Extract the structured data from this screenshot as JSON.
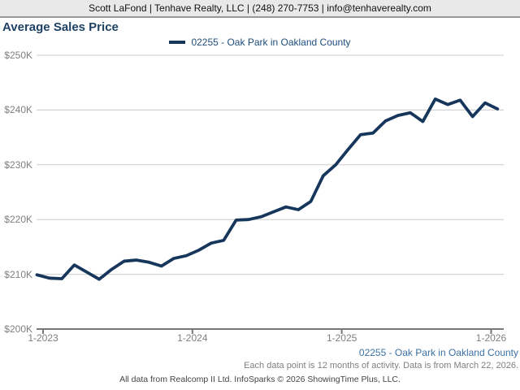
{
  "header": {
    "text": "Scott LaFond | Tenhave Realty, LLC | (248) 270-7753 | info@tenhaverealty.com"
  },
  "title": "Average Sales Price",
  "legend": {
    "label": "02255 - Oak Park in Oakland County"
  },
  "footer": {
    "series_label": "02255 - Oak Park in Oakland County",
    "note": "Each data point is 12 months of activity. Data is from March 22, 2026.",
    "attribution": "All data from Realcomp II Ltd. InfoSparks © 2026 ShowingTime Plus, LLC."
  },
  "colors": {
    "line": "#16365c",
    "title": "#1e4164",
    "legend_text": "#1d4d7c",
    "footer_link": "#3c72a4",
    "axis": "#777777",
    "grid": "#cccccc",
    "tick_text": "#7f7f7f",
    "header_bg": "#e9e9e9"
  },
  "chart_data": {
    "type": "line",
    "title": "Average Sales Price",
    "x": [
      "1-2023",
      "2-2023",
      "3-2023",
      "4-2023",
      "5-2023",
      "6-2023",
      "7-2023",
      "8-2023",
      "9-2023",
      "10-2023",
      "11-2023",
      "12-2023",
      "1-2024",
      "2-2024",
      "3-2024",
      "4-2024",
      "5-2024",
      "6-2024",
      "7-2024",
      "8-2024",
      "9-2024",
      "10-2024",
      "11-2024",
      "12-2024",
      "1-2025",
      "2-2025",
      "3-2025",
      "4-2025",
      "5-2025",
      "6-2025",
      "7-2025",
      "8-2025",
      "9-2025",
      "10-2025",
      "11-2025",
      "12-2025",
      "1-2026",
      "2-2026"
    ],
    "series": [
      {
        "name": "02255 - Oak Park in Oakland County",
        "values": [
          209900,
          209300,
          209200,
          211700,
          210400,
          209100,
          210900,
          212400,
          212600,
          212200,
          211500,
          212900,
          213400,
          214400,
          215700,
          216200,
          219900,
          220000,
          220500,
          221400,
          222300,
          221800,
          223300,
          228000,
          230000,
          232800,
          235500,
          235800,
          238000,
          239000,
          239500,
          237900,
          242000,
          241000,
          241800,
          238800,
          241300,
          240200
        ]
      }
    ],
    "ylim": [
      200000,
      250000
    ],
    "y_tick_step": 10000,
    "y_tick_labels": [
      "$200K",
      "$210K",
      "$220K",
      "$230K",
      "$240K",
      "$250K"
    ],
    "x_tick_indices": [
      0,
      12,
      24,
      36
    ],
    "x_tick_labels": [
      "1-2023",
      "1-2024",
      "1-2025",
      "1-2026"
    ],
    "grid": "horizontal",
    "legend_position": "top-center"
  }
}
